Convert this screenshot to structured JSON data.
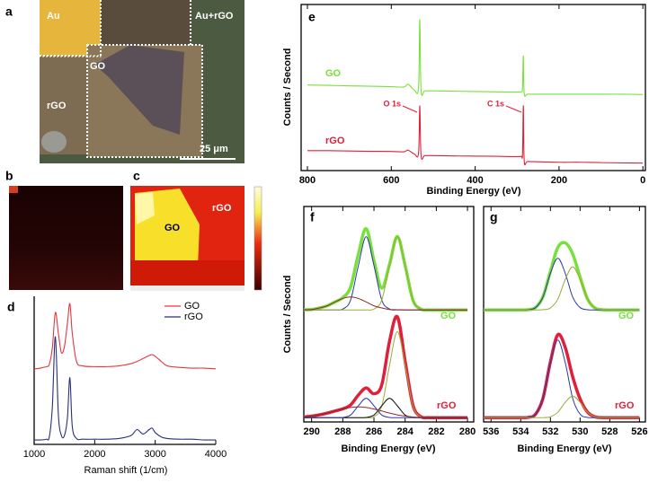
{
  "panels": {
    "a": {
      "label": "a",
      "texts": [
        "Au",
        "Au+rGO",
        "GO",
        "rGO"
      ],
      "scale_bar": "25 μm"
    },
    "b": {
      "label": "b"
    },
    "c": {
      "label": "c",
      "texts": [
        "GO",
        "rGO"
      ]
    }
  },
  "chart_data": [
    {
      "type": "line",
      "panel_label": "d",
      "xlabel": "Raman shift (1/cm)",
      "x": [
        1000,
        1100,
        1200,
        1250,
        1300,
        1350,
        1400,
        1450,
        1500,
        1550,
        1590,
        1630,
        1700,
        1800,
        2000,
        2200,
        2400,
        2600,
        2700,
        2800,
        2900,
        2950,
        3000,
        3100,
        3200,
        3400,
        3600,
        3800,
        4000
      ],
      "xlim": [
        1000,
        4000
      ],
      "xticks": [
        1000,
        2000,
        3000,
        4000
      ],
      "ylim": [
        0,
        100
      ],
      "legend": "top-right",
      "series": [
        {
          "name": "GO",
          "color": "#e8353f",
          "values": [
            51,
            51.5,
            52.5,
            54,
            65,
            89,
            75,
            62,
            66,
            82,
            95,
            75,
            56,
            53,
            52.5,
            52.5,
            53,
            54.5,
            56,
            58,
            60,
            60.6,
            59.5,
            56,
            53,
            52,
            51.5,
            51.5,
            51
          ]
        },
        {
          "name": "rGO",
          "color": "#27307a",
          "values": [
            3,
            3,
            3.5,
            5,
            25,
            72.7,
            20,
            6,
            6,
            18,
            45,
            12,
            4,
            3.5,
            3.5,
            3.5,
            4,
            6,
            10,
            7,
            10,
            11,
            8,
            5,
            4,
            3.5,
            3.5,
            3,
            3
          ]
        }
      ]
    },
    {
      "type": "line",
      "panel_label": "e",
      "xlabel": "Binding Energy (eV)",
      "ylabel": "Counts / Second",
      "x": [
        800,
        750,
        700,
        650,
        600,
        570,
        560,
        545,
        535,
        532,
        529,
        520,
        500,
        450,
        400,
        350,
        300,
        290,
        287,
        285,
        283,
        275,
        250,
        200,
        150,
        100,
        50,
        0
      ],
      "xlim": [
        815,
        -6
      ],
      "xticks": [
        800,
        600,
        400,
        200,
        0
      ],
      "ylim": [
        0,
        100
      ],
      "annotations": [
        "O 1s",
        "C 1s"
      ],
      "series": [
        {
          "name": "GO",
          "color": "#77e03a",
          "values": [
            51.5,
            51.3,
            51,
            50.8,
            50.5,
            50.3,
            52,
            48.5,
            50,
            91,
            48.5,
            48,
            48,
            47.8,
            47.6,
            47.4,
            47.3,
            47.5,
            50,
            69,
            46.5,
            46,
            46,
            46,
            46,
            46,
            46,
            45.8
          ]
        },
        {
          "name": "rGO",
          "color": "#e0203a",
          "values": [
            12,
            12,
            11.8,
            11.6,
            11.5,
            11.3,
            12.3,
            10,
            10.5,
            39,
            9,
            9,
            9,
            8.8,
            8.7,
            8.6,
            8.4,
            8.6,
            10,
            39,
            6,
            5.5,
            5.3,
            5,
            5,
            4.8,
            4.6,
            4.5
          ]
        }
      ]
    },
    {
      "type": "line",
      "panel_label": "f",
      "xlabel": "Binding Energy (eV)",
      "ylabel": "Counts / Second",
      "x": [
        290.5,
        290,
        289.5,
        289,
        288.5,
        288,
        287.5,
        287,
        286.5,
        286,
        285.5,
        285,
        284.5,
        284,
        283.5,
        283,
        282.5,
        282,
        281.5,
        281,
        280.5,
        280
      ],
      "xlim": [
        290.5,
        279.6
      ],
      "xticks": [
        290,
        288,
        286,
        284,
        282,
        280
      ],
      "ylim": [
        0,
        100
      ],
      "series": [
        {
          "name": "GO",
          "color": "#77e03a",
          "values": [
            52.1,
            52.2,
            52.9,
            53.9,
            55.7,
            57.7,
            62.6,
            77.9,
            89.7,
            74.9,
            62.1,
            73.2,
            86.1,
            72.6,
            56.6,
            52.4,
            52,
            52,
            52,
            52,
            52,
            52
          ]
        },
        {
          "color": "#2b3aa8",
          "values": [
            52,
            52,
            52,
            52,
            52,
            52.4,
            56.6,
            72.6,
            86,
            72.6,
            56.6,
            52.4,
            52,
            52,
            52,
            52,
            52,
            52,
            52,
            52,
            52,
            52
          ]
        },
        {
          "color": "#9aab3a",
          "values": [
            52,
            52,
            52,
            52,
            52,
            52,
            52,
            52,
            52,
            52.4,
            56.6,
            72.6,
            86,
            72.6,
            56.6,
            52.4,
            52,
            52,
            52,
            52,
            52,
            52
          ]
        },
        {
          "color": "#8e2a2a",
          "values": [
            52.1,
            52.2,
            52.9,
            53.9,
            55.7,
            57.3,
            58,
            57.3,
            55.7,
            53.9,
            52.9,
            52.2,
            52.1,
            52,
            52,
            52,
            52,
            52,
            52,
            52,
            52,
            52
          ]
        },
        {
          "name": "rGO",
          "color": "#e0203a",
          "values": [
            2.3,
            2.7,
            3.3,
            4.1,
            5.1,
            6.1,
            7.9,
            12.5,
            15.8,
            13.1,
            17.2,
            37.5,
            48.8,
            28.2,
            7.8,
            2.5,
            2,
            2,
            2,
            2,
            2,
            2
          ]
        },
        {
          "color": "#9aab3a",
          "values": [
            2,
            2,
            2,
            2,
            2,
            2,
            2,
            2,
            2,
            2.4,
            7.4,
            26.3,
            42,
            26.3,
            7.4,
            2.4,
            2,
            2,
            2,
            2,
            2,
            2
          ]
        },
        {
          "color": "#111111",
          "values": [
            2,
            2,
            2,
            2,
            2,
            2,
            2,
            2,
            2.1,
            3.2,
            7.5,
            11,
            7.5,
            3.2,
            2.1,
            2,
            2,
            2,
            2,
            2,
            2,
            2
          ]
        },
        {
          "color": "#2b3aa8",
          "values": [
            2,
            2,
            2,
            2,
            2,
            2.1,
            3.2,
            7.5,
            11,
            7.5,
            3.2,
            2.1,
            2,
            2,
            2,
            2,
            2,
            2,
            2,
            2,
            2,
            2
          ]
        },
        {
          "color": "#8e2a2a",
          "values": [
            2.3,
            2.7,
            3.3,
            4.1,
            5.1,
            6,
            6.7,
            7,
            6.7,
            6,
            5.1,
            4.1,
            3.3,
            2.7,
            2.3,
            2.1,
            2,
            2,
            2,
            2,
            2,
            2
          ]
        }
      ]
    },
    {
      "type": "line",
      "panel_label": "g",
      "xlabel": "Binding Energy (eV)",
      "x": [
        536.5,
        536,
        535.5,
        535,
        534.5,
        534,
        533.5,
        533,
        532.5,
        532,
        531.5,
        531,
        530.5,
        530,
        529.5,
        529,
        528.5,
        528,
        527.5,
        527,
        526.5,
        526
      ],
      "xlim": [
        536.5,
        525.6
      ],
      "xticks": [
        536,
        534,
        532,
        530,
        528,
        526
      ],
      "ylim": [
        0,
        100
      ],
      "series": [
        {
          "name": "GO",
          "color": "#77e03a",
          "values": [
            52,
            52,
            52,
            52,
            52,
            52,
            52.1,
            53.1,
            58.1,
            69.9,
            81,
            83.1,
            78,
            67.2,
            57.1,
            52.9,
            52.1,
            52,
            52,
            52,
            52,
            52
          ]
        },
        {
          "color": "#2b3aa8",
          "values": [
            52,
            52,
            52,
            52,
            52,
            52,
            52.1,
            53.1,
            58,
            69,
            76,
            69,
            58,
            53.1,
            52.1,
            52,
            52,
            52,
            52,
            52,
            52,
            52
          ]
        },
        {
          "color": "#9aab3a",
          "values": [
            52,
            52,
            52,
            52,
            52,
            52,
            52,
            52,
            52.1,
            52.9,
            57,
            66.1,
            72,
            66.1,
            57,
            52.9,
            52.1,
            52,
            52,
            52,
            52,
            52
          ]
        },
        {
          "name": "rGO",
          "color": "#e0203a",
          "values": [
            2,
            2,
            2,
            2,
            2,
            2,
            2.1,
            3.6,
            11,
            27.9,
            40.5,
            34.6,
            21,
            10.7,
            4.6,
            2.4,
            2,
            2,
            2,
            2,
            2,
            2
          ]
        },
        {
          "color": "#2b3aa8",
          "values": [
            2,
            2,
            2,
            2,
            2,
            2,
            2.1,
            3.6,
            11,
            27.5,
            38,
            27.5,
            11,
            3.6,
            2.1,
            2,
            2,
            2,
            2,
            2,
            2,
            2
          ]
        },
        {
          "color": "#9aab3a",
          "values": [
            2,
            2,
            2,
            2,
            2,
            2,
            2,
            2,
            2,
            2.4,
            4.5,
            9.1,
            12,
            9.1,
            4.5,
            2.4,
            2,
            2,
            2,
            2,
            2,
            2
          ]
        }
      ]
    }
  ]
}
